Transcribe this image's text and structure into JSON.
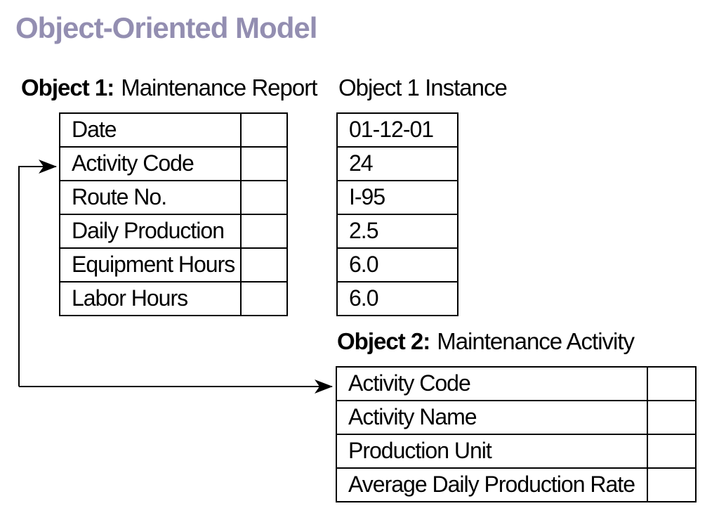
{
  "title": "Object-Oriented Model",
  "colors": {
    "title_text": "#938EB1",
    "diagram_lines": "#000000",
    "background": "#FFFFFF"
  },
  "object1": {
    "heading_bold": "Object 1:",
    "heading_name": "Maintenance Report",
    "fields": [
      "Date",
      "Activity Code",
      "Route No.",
      "Daily Production",
      "Equipment Hours",
      "Labor Hours"
    ]
  },
  "instance": {
    "heading": "Object 1 Instance",
    "values": [
      "01-12-01",
      "24",
      "I-95",
      "2.5",
      "6.0",
      "6.0"
    ]
  },
  "object2": {
    "heading_bold": "Object 2:",
    "heading_name": "Maintenance Activity",
    "fields": [
      "Activity Code",
      "Activity Name",
      "Production Unit",
      "Average Daily Production Rate"
    ]
  }
}
